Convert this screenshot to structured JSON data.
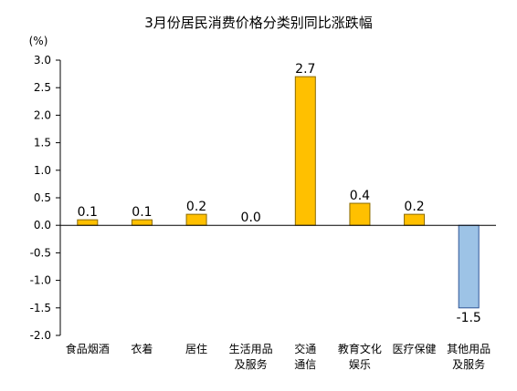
{
  "chart_data": {
    "type": "bar",
    "title": "3月份居民消费价格分类别同比涨跌幅",
    "unit_label": "(%)",
    "categories": [
      [
        "食品烟酒"
      ],
      [
        "衣着"
      ],
      [
        "居住"
      ],
      [
        "生活用品",
        "及服务"
      ],
      [
        "交通",
        "通信"
      ],
      [
        "教育文化",
        "娱乐"
      ],
      [
        "医疗保健"
      ],
      [
        "其他用品",
        "及服务"
      ]
    ],
    "values": [
      0.1,
      0.1,
      0.2,
      0.0,
      2.7,
      0.4,
      0.2,
      -1.5
    ],
    "value_labels": [
      "0.1",
      "0.1",
      "0.2",
      "0.0",
      "2.7",
      "0.4",
      "0.2",
      "-1.5"
    ],
    "ylim": [
      -2.0,
      3.0
    ],
    "yticks": [
      "3.0",
      "2.5",
      "2.0",
      "1.5",
      "1.0",
      "0.5",
      "0.0",
      "-0.5",
      "-1.0",
      "-1.5",
      "-2.0"
    ],
    "grid": false,
    "colors": {
      "positive_fill": "#FFC000",
      "positive_stroke": "#8A6A00",
      "negative_fill": "#9DC3E6",
      "negative_stroke": "#2F5597",
      "axis": "#000000"
    }
  }
}
